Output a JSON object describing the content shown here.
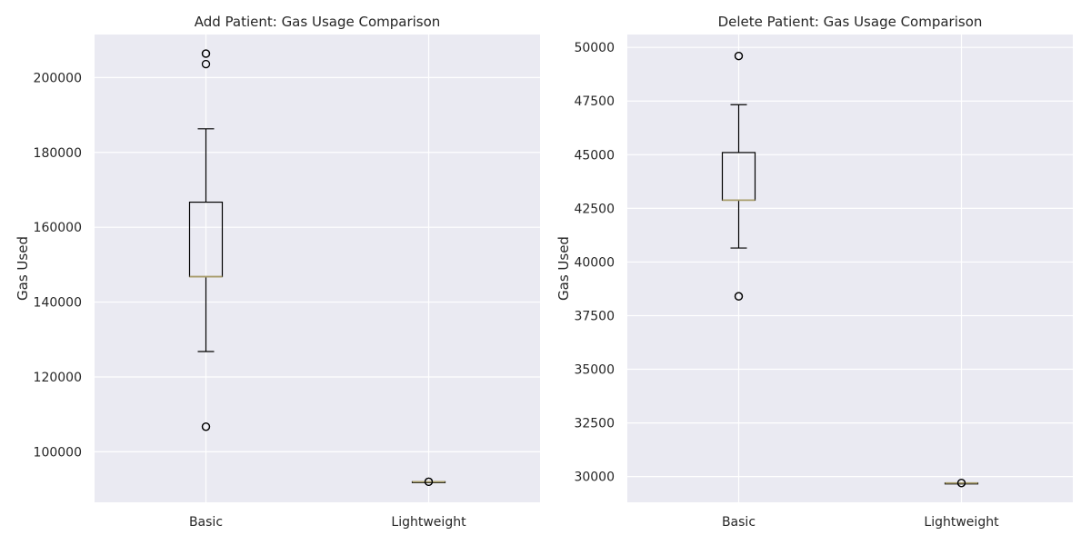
{
  "chart_data": [
    {
      "type": "box",
      "title": "Add Patient: Gas Usage Comparison",
      "xlabel": "",
      "ylabel": "Gas Used",
      "categories": [
        "Basic",
        "Lightweight"
      ],
      "ylim": [
        86500,
        211500
      ],
      "yticks": [
        100000,
        120000,
        140000,
        160000,
        180000,
        200000
      ],
      "ytick_labels": [
        "100000",
        "120000",
        "140000",
        "160000",
        "180000",
        "200000"
      ],
      "grid": true,
      "boxes": [
        {
          "label": "Basic",
          "whisker_low": 126800,
          "q1": 146800,
          "median": 146800,
          "q3": 166700,
          "whisker_high": 186300,
          "outliers": [
            106700,
            106700,
            203600,
            206400,
            206400
          ]
        },
        {
          "label": "Lightweight",
          "whisker_low": 92000,
          "q1": 92000,
          "median": 92000,
          "q3": 92000,
          "whisker_high": 92000,
          "outliers": [
            92000,
            92000
          ]
        }
      ]
    },
    {
      "type": "box",
      "title": "Delete Patient: Gas Usage Comparison",
      "xlabel": "",
      "ylabel": "Gas Used",
      "categories": [
        "Basic",
        "Lightweight"
      ],
      "ylim": [
        28800,
        50600
      ],
      "yticks": [
        30000,
        32500,
        35000,
        37500,
        40000,
        42500,
        45000,
        47500,
        50000
      ],
      "ytick_labels": [
        "30000",
        "32500",
        "35000",
        "37500",
        "40000",
        "42500",
        "45000",
        "47500",
        "50000"
      ],
      "grid": true,
      "boxes": [
        {
          "label": "Basic",
          "whisker_low": 40650,
          "q1": 42880,
          "median": 42880,
          "q3": 45100,
          "whisker_high": 47330,
          "outliers": [
            38400,
            38400,
            49600,
            49600
          ]
        },
        {
          "label": "Lightweight",
          "whisker_low": 29700,
          "q1": 29700,
          "median": 29700,
          "q3": 29700,
          "whisker_high": 29700,
          "outliers": [
            29700,
            29700
          ]
        }
      ]
    }
  ],
  "colors": {
    "plot_background": "#EAEAF2",
    "grid": "#FFFFFF",
    "box": "#000000",
    "median": "#A89D6C",
    "text": "#262626"
  }
}
